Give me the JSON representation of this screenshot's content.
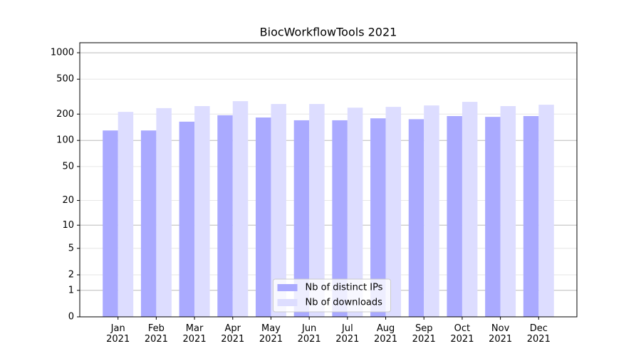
{
  "chart_data": {
    "type": "bar",
    "title": "BiocWorkflowTools 2021",
    "categories": [
      "Jan 2021",
      "Feb 2021",
      "Mar 2021",
      "Apr 2021",
      "May 2021",
      "Jun 2021",
      "Jul 2021",
      "Aug 2021",
      "Sep 2021",
      "Oct 2021",
      "Nov 2021",
      "Dec 2021"
    ],
    "series": [
      {
        "name": "Nb of distinct IPs",
        "color": "#aaaaff",
        "values": [
          130,
          130,
          164,
          194,
          183,
          170,
          170,
          179,
          175,
          190,
          186,
          190
        ]
      },
      {
        "name": "Nb of downloads",
        "color": "#ddddff",
        "values": [
          212,
          234,
          247,
          281,
          261,
          261,
          237,
          242,
          251,
          276,
          247,
          256
        ]
      }
    ],
    "y_scale": "log1p",
    "ylim": [
      0,
      1300
    ],
    "yticks": [
      0,
      1,
      2,
      5,
      10,
      20,
      50,
      100,
      200,
      500,
      1000
    ],
    "grid": true,
    "legend_position": "lower center"
  }
}
